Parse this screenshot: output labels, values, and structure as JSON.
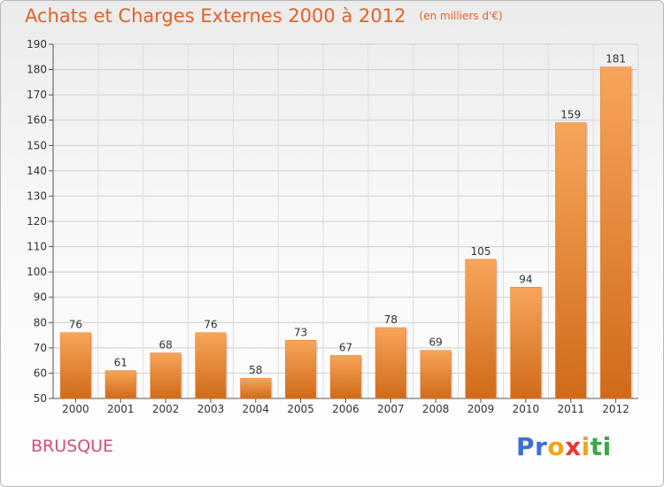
{
  "header": {
    "title": "Achats et Charges Externes 2000 à 2012",
    "subtitle": "(en milliers d'€)"
  },
  "footer": {
    "commune": "BRUSQUE",
    "logo_letters": [
      "P",
      "r",
      "o",
      "x",
      "i",
      "t",
      "i"
    ]
  },
  "colors": {
    "title": "#e2622a",
    "commune": "#d64b7c",
    "bar_top": "#f7a55a",
    "bar_bottom": "#d06a18",
    "logo": [
      "#3a6fd6",
      "#3a6fd6",
      "#f2a51a",
      "#e8373a",
      "#f2a51a",
      "#3aa845",
      "#3aa845"
    ]
  },
  "chart_data": {
    "type": "bar",
    "categories": [
      "2000",
      "2001",
      "2002",
      "2003",
      "2004",
      "2005",
      "2006",
      "2007",
      "2008",
      "2009",
      "2010",
      "2011",
      "2012"
    ],
    "values": [
      76,
      61,
      68,
      76,
      58,
      73,
      67,
      78,
      69,
      105,
      94,
      159,
      181
    ],
    "ylim": [
      50,
      190
    ],
    "yticks": [
      50,
      60,
      70,
      80,
      90,
      100,
      110,
      120,
      130,
      140,
      150,
      160,
      170,
      180,
      190
    ],
    "grid": true
  }
}
